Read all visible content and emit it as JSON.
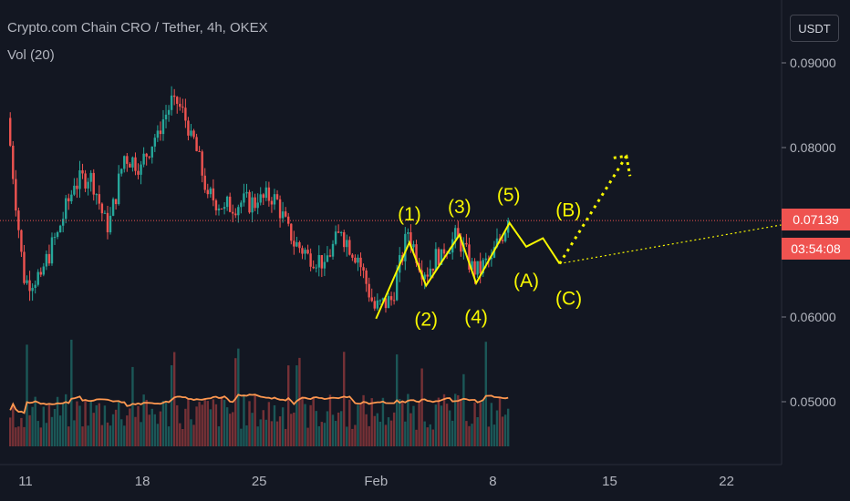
{
  "header": {
    "symbol_line": "Crypto.com Chain CRO / Tether, 4h, OKEX",
    "volume_line": "Vol (20)"
  },
  "currency_button": "USDT",
  "last_price": "0.07139",
  "countdown": "03:54:08",
  "colors": {
    "background": "#131722",
    "up": "#26a69a",
    "down": "#ef5350",
    "annotation": "#f7f700",
    "volume_ma": "#ff9850",
    "price_line": "#ef5350"
  },
  "wave_labels": [
    "(1)",
    "(2)",
    "(3)",
    "(4)",
    "(5)",
    "(A)",
    "(B)",
    "(C)"
  ],
  "chart_data": {
    "type": "candlestick",
    "title": "Crypto.com Chain CRO / Tether, 4h, OKEX",
    "y_axis": {
      "ticks": [
        "0.09000",
        "0.08000",
        "0.06000",
        "0.05000"
      ],
      "range": [
        0.0435,
        0.097
      ],
      "position": "right"
    },
    "x_axis": {
      "ticks": [
        "11",
        "18",
        "25",
        "Feb",
        "8",
        "15",
        "22"
      ]
    },
    "grid": false,
    "series": [
      {
        "name": "Price",
        "approximate_closes_by_day": [
          {
            "x": "Jan 10",
            "y": 0.0835
          },
          {
            "x": "Jan 11",
            "y": 0.064
          },
          {
            "x": "Jan 12",
            "y": 0.065
          },
          {
            "x": "Jan 13",
            "y": 0.07
          },
          {
            "x": "Jan 14",
            "y": 0.0755
          },
          {
            "x": "Jan 15",
            "y": 0.077
          },
          {
            "x": "Jan 16",
            "y": 0.07
          },
          {
            "x": "Jan 17",
            "y": 0.079
          },
          {
            "x": "Jan 18",
            "y": 0.078
          },
          {
            "x": "Jan 19",
            "y": 0.082
          },
          {
            "x": "Jan 20",
            "y": 0.086
          },
          {
            "x": "Jan 21",
            "y": 0.082
          },
          {
            "x": "Jan 22",
            "y": 0.0745
          },
          {
            "x": "Jan 23",
            "y": 0.073
          },
          {
            "x": "Jan 24",
            "y": 0.0735
          },
          {
            "x": "Jan 25",
            "y": 0.0735
          },
          {
            "x": "Jan 26",
            "y": 0.0745
          },
          {
            "x": "Jan 27",
            "y": 0.069
          },
          {
            "x": "Jan 28",
            "y": 0.0675
          },
          {
            "x": "Jan 29",
            "y": 0.0665
          },
          {
            "x": "Jan 30",
            "y": 0.07
          },
          {
            "x": "Jan 31",
            "y": 0.067
          },
          {
            "x": "Feb 1",
            "y": 0.061
          },
          {
            "x": "Feb 2",
            "y": 0.062
          },
          {
            "x": "Feb 3",
            "y": 0.07
          },
          {
            "x": "Feb 4",
            "y": 0.065
          },
          {
            "x": "Feb 5",
            "y": 0.068
          },
          {
            "x": "Feb 6",
            "y": 0.0695
          },
          {
            "x": "Feb 7",
            "y": 0.065
          },
          {
            "x": "Feb 8",
            "y": 0.067
          },
          {
            "x": "Feb 9",
            "y": 0.0714
          }
        ]
      },
      {
        "name": "Vol (20)",
        "note": "volume histogram with moving average, no numeric scale printed"
      }
    ],
    "last_price": 0.07139,
    "annotations": {
      "elliott_impulse": [
        {
          "label": "",
          "x": "Feb 1",
          "y": 0.0598
        },
        {
          "label": "(1)",
          "x": "Feb 3",
          "y": 0.0688
        },
        {
          "label": "(2)",
          "x": "Feb 4",
          "y": 0.0637
        },
        {
          "label": "(3)",
          "x": "Feb 6",
          "y": 0.0697
        },
        {
          "label": "(4)",
          "x": "Feb 7",
          "y": 0.064
        },
        {
          "label": "(5)",
          "x": "Feb 9",
          "y": 0.0711
        }
      ],
      "corrective": [
        {
          "label": "(A)",
          "x": "Feb 10",
          "y": 0.0683
        },
        {
          "label": "(B)",
          "x": "Feb 11",
          "y": 0.0693
        },
        {
          "label": "(C)",
          "x": "Feb 12",
          "y": 0.0663
        }
      ],
      "target_arrow": {
        "from": {
          "x": "Feb 12",
          "y": 0.0663
        },
        "to": {
          "x": "Feb 16",
          "y": 0.079
        }
      },
      "trendline": {
        "from": {
          "x": "Feb 12",
          "y": 0.0663
        },
        "to": {
          "x": "Feb 28",
          "y": 0.0718
        }
      }
    }
  }
}
